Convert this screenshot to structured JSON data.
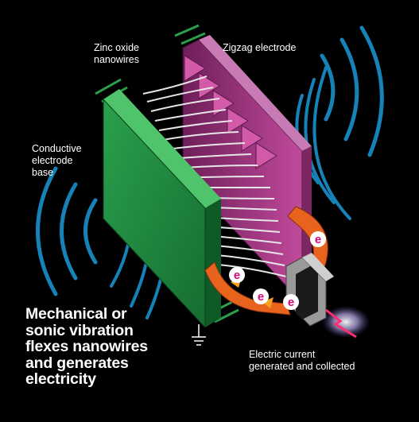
{
  "labels": {
    "zinc_oxide": "Zinc oxide\nnanowires",
    "zigzag": "Zigzag electrode",
    "conductive_base": "Conductive\nelectrode\nbase",
    "current": "Electric current\ngenerated and collected"
  },
  "headline": "Mechanical or\nsonic  vibration\nflexes nanowires\nand generates\nelectricity",
  "electron_symbol": "e",
  "colors": {
    "background": "#000000",
    "base_green": "#1f8a3f",
    "zigzag_magenta": "#a0307f",
    "wave_blue": "#1583b7",
    "arrow_orange": "#e8631e",
    "electron_pink": "#d4087a"
  }
}
